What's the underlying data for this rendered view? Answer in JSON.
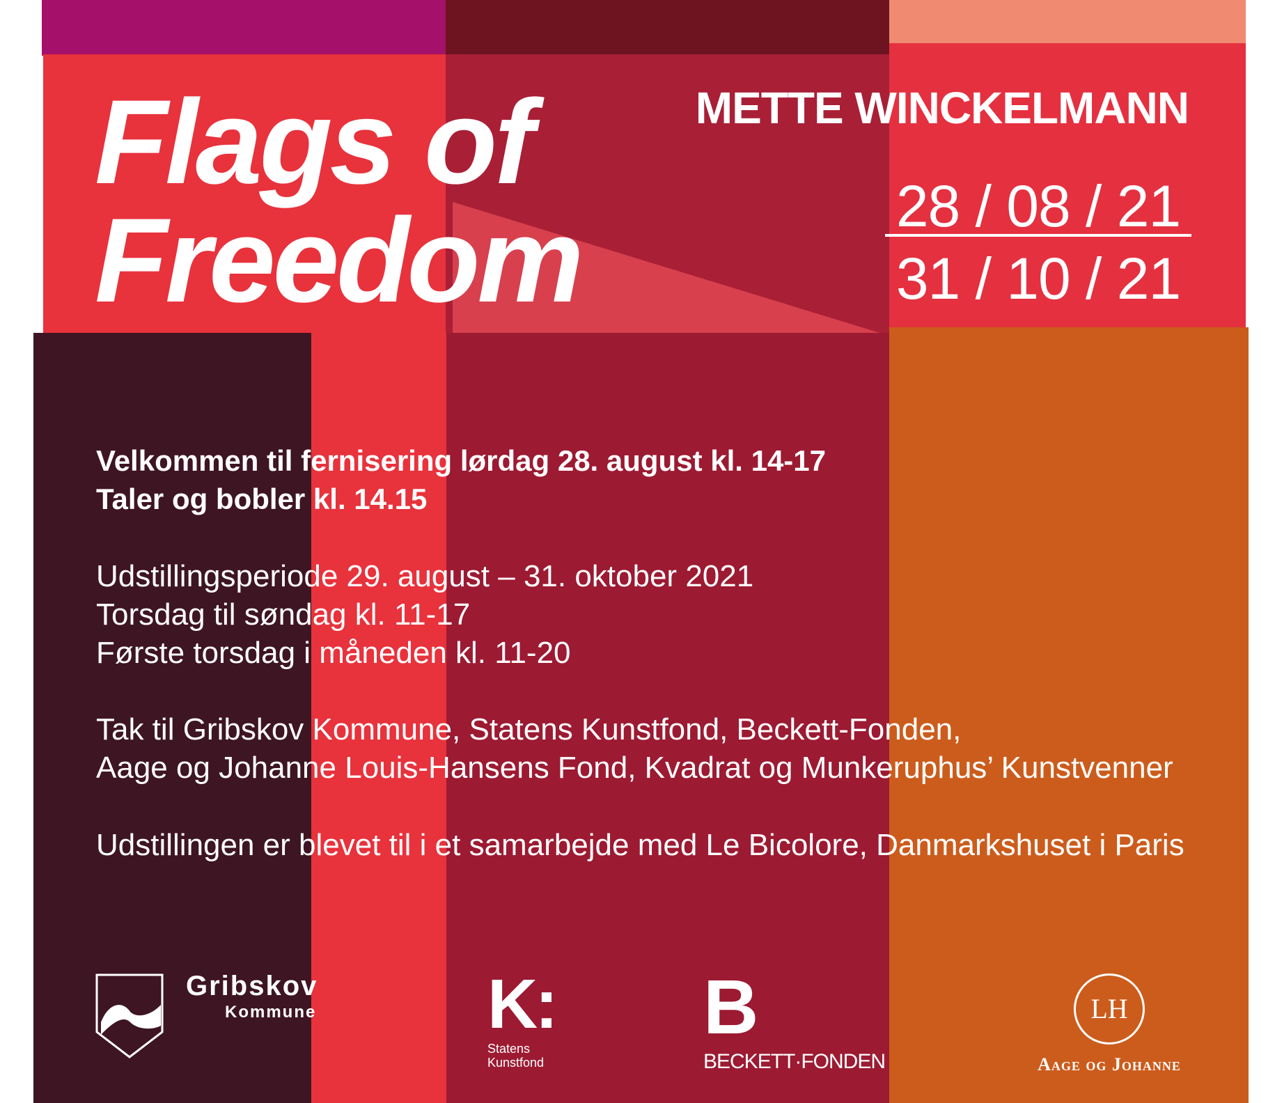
{
  "poster": {
    "title_line1": "Flags of",
    "title_line2": "Freedom",
    "artist": "METTE WINCKELMANN",
    "date_start": "28 / 08 / 21",
    "date_end": "31 / 10 / 21",
    "opening": [
      "Velkommen til fernisering lørdag 28. august kl. 14-17",
      "Taler og bobler kl. 14.15"
    ],
    "hours": [
      "Udstillingsperiode 29. august – 31. oktober 2021",
      "Torsdag til søndag kl. 11-17",
      "Første torsdag i måneden kl. 11-20"
    ],
    "thanks": [
      "Tak til Gribskov Kommune, Statens Kunstfond, Beckett-Fonden,",
      "Aage og Johanne Louis-Hansens Fond, Kvadrat og Munkeruphus’ Kunstvenner"
    ],
    "collab": "Udstillingen er blevet til i et samarbejde med Le Bicolore, Danmarkshuset i Paris"
  },
  "logos": {
    "gribskov": {
      "name": "Gribskov",
      "sub": "Kommune"
    },
    "statens": {
      "mark": "K:",
      "line1": "Statens",
      "line2": "Kunstfond"
    },
    "beckett": {
      "mark": "B",
      "name": "BECKETT·FONDEN"
    },
    "aage": {
      "mark": "LH",
      "name": "Aage og Johanne"
    }
  },
  "colors": {
    "red": "#e8323c",
    "crimson": "#9c1a32",
    "dark": "#3e1523",
    "orange": "#cc5c1c",
    "magenta": "#a5106a"
  }
}
